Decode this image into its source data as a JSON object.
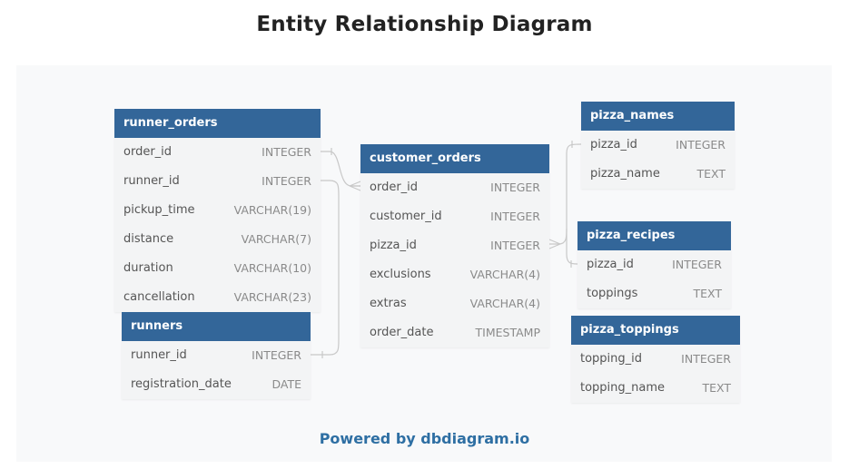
{
  "title": "Entity Relationship Diagram",
  "footer": "Powered by dbdiagram.io",
  "colors": {
    "header": "#336699",
    "link": "#c8c8c8",
    "footer_text": "#2e6fa3"
  },
  "tables": {
    "runner_orders": {
      "name": "runner_orders",
      "fields": [
        {
          "name": "order_id",
          "type": "INTEGER"
        },
        {
          "name": "runner_id",
          "type": "INTEGER"
        },
        {
          "name": "pickup_time",
          "type": "VARCHAR(19)"
        },
        {
          "name": "distance",
          "type": "VARCHAR(7)"
        },
        {
          "name": "duration",
          "type": "VARCHAR(10)"
        },
        {
          "name": "cancellation",
          "type": "VARCHAR(23)"
        }
      ]
    },
    "runners": {
      "name": "runners",
      "fields": [
        {
          "name": "runner_id",
          "type": "INTEGER"
        },
        {
          "name": "registration_date",
          "type": "DATE"
        }
      ]
    },
    "customer_orders": {
      "name": "customer_orders",
      "fields": [
        {
          "name": "order_id",
          "type": "INTEGER"
        },
        {
          "name": "customer_id",
          "type": "INTEGER"
        },
        {
          "name": "pizza_id",
          "type": "INTEGER"
        },
        {
          "name": "exclusions",
          "type": "VARCHAR(4)"
        },
        {
          "name": "extras",
          "type": "VARCHAR(4)"
        },
        {
          "name": "order_date",
          "type": "TIMESTAMP"
        }
      ]
    },
    "pizza_names": {
      "name": "pizza_names",
      "fields": [
        {
          "name": "pizza_id",
          "type": "INTEGER"
        },
        {
          "name": "pizza_name",
          "type": "TEXT"
        }
      ]
    },
    "pizza_recipes": {
      "name": "pizza_recipes",
      "fields": [
        {
          "name": "pizza_id",
          "type": "INTEGER"
        },
        {
          "name": "toppings",
          "type": "TEXT"
        }
      ]
    },
    "pizza_toppings": {
      "name": "pizza_toppings",
      "fields": [
        {
          "name": "topping_id",
          "type": "INTEGER"
        },
        {
          "name": "topping_name",
          "type": "TEXT"
        }
      ]
    }
  }
}
